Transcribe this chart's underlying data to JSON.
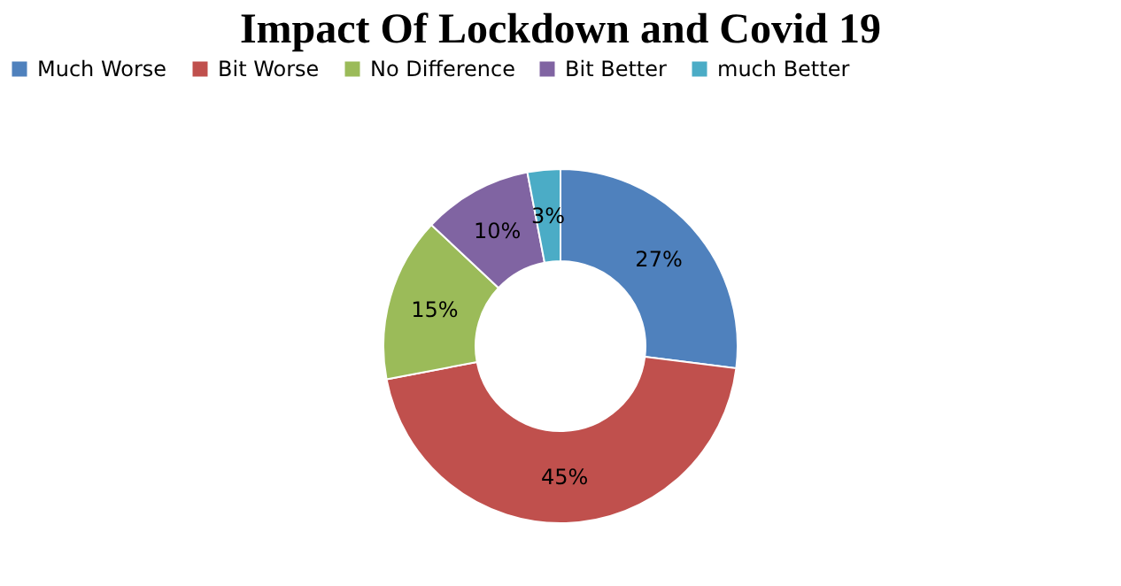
{
  "chart_data": {
    "type": "donut",
    "title": "Impact Of  Lockdown and Covid 19",
    "categories": [
      "Much Worse",
      "Bit Worse",
      "No Difference",
      "Bit Better",
      "much Better"
    ],
    "values": [
      27,
      45,
      15,
      10,
      3
    ],
    "colors": [
      "#4f81bd",
      "#c0504d",
      "#9bbb59",
      "#8064a2",
      "#4bacc6"
    ],
    "value_labels": [
      "27%",
      "45%",
      "15%",
      "10%",
      "3%"
    ],
    "legend": "top"
  }
}
